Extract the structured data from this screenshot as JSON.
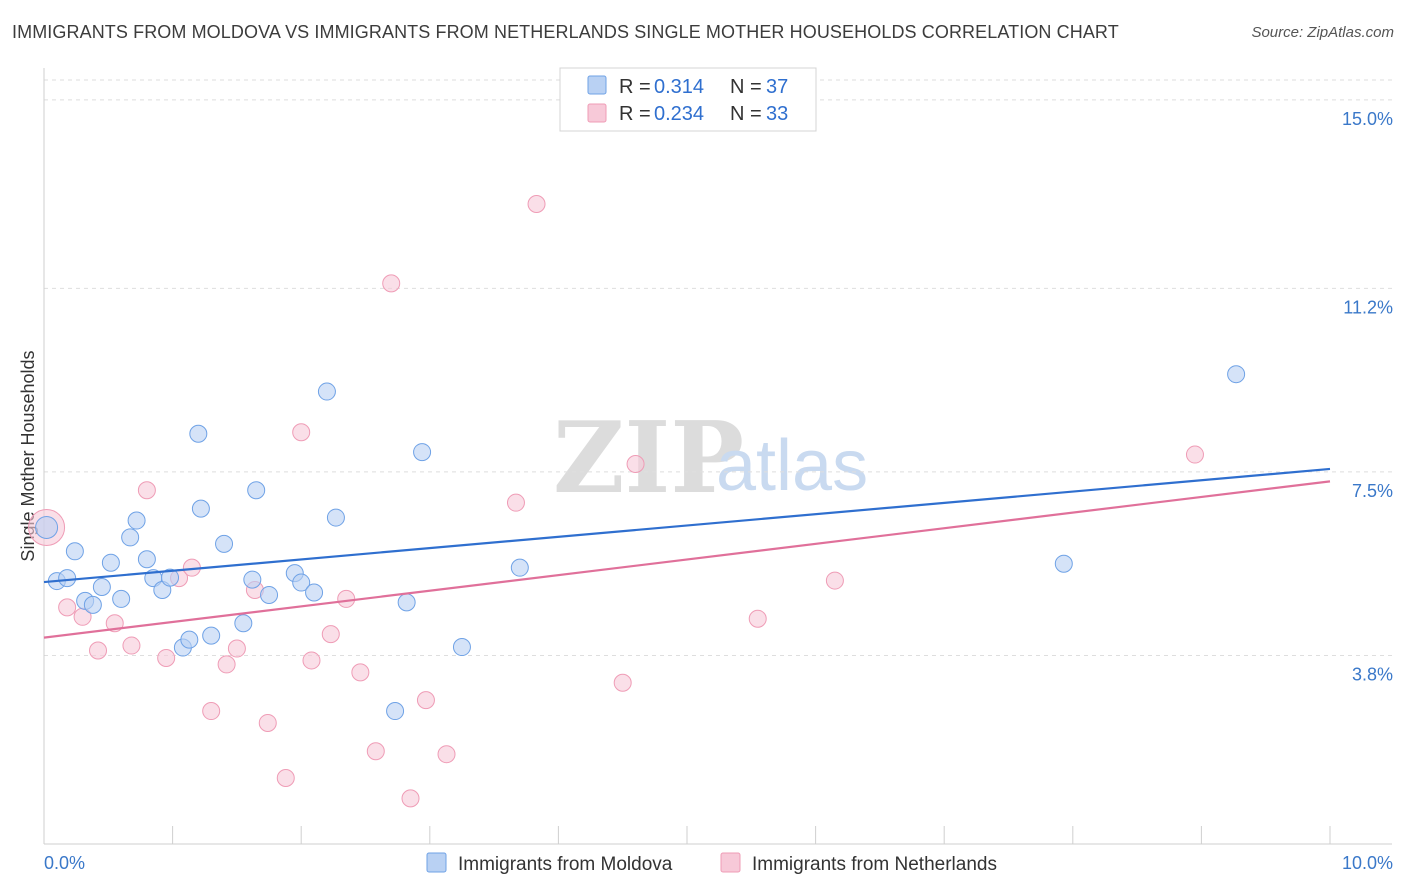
{
  "title": "IMMIGRANTS FROM MOLDOVA VS IMMIGRANTS FROM NETHERLANDS SINGLE MOTHER HOUSEHOLDS CORRELATION CHART",
  "source": "Source: ZipAtlas.com",
  "watermark": {
    "zip": "ZIP",
    "atlas": "atlas"
  },
  "legend": {
    "r_label": "R =",
    "n_label": "N =",
    "rows": [
      {
        "r": "0.314",
        "n": "37"
      },
      {
        "r": "0.234",
        "n": "33"
      }
    ]
  },
  "chart_data": {
    "type": "scatter",
    "title": "IMMIGRANTS FROM MOLDOVA VS IMMIGRANTS FROM NETHERLANDS SINGLE MOTHER HOUSEHOLDS CORRELATION CHART",
    "xlabel": "",
    "ylabel": "Single Mother Households",
    "xlim": [
      0,
      10
    ],
    "ylim": [
      0,
      15.4
    ],
    "x_tick_labels": [
      "0.0%",
      "10.0%"
    ],
    "y_ticks": [
      3.8,
      7.5,
      11.2,
      15.0
    ],
    "y_tick_labels": [
      "3.8%",
      "7.5%",
      "11.2%",
      "15.0%"
    ],
    "grid": true,
    "legend_position": "top-center",
    "series": [
      {
        "name": "Immigrants from Moldova",
        "color": "#6fa2e6",
        "fill": "#b9d1f3",
        "line_color": "#2f6fcf",
        "r": 0.314,
        "n": 37,
        "trend": {
          "x0": 0.0,
          "y0": 5.28,
          "x1": 10.0,
          "y1": 7.56
        },
        "points": [
          [
            0.02,
            6.38
          ],
          [
            0.1,
            5.3
          ],
          [
            0.18,
            5.36
          ],
          [
            0.24,
            5.9
          ],
          [
            0.32,
            4.9
          ],
          [
            0.38,
            4.82
          ],
          [
            0.45,
            5.18
          ],
          [
            0.52,
            5.67
          ],
          [
            0.6,
            4.94
          ],
          [
            0.67,
            6.18
          ],
          [
            0.72,
            6.52
          ],
          [
            0.8,
            5.74
          ],
          [
            0.85,
            5.36
          ],
          [
            0.92,
            5.12
          ],
          [
            0.98,
            5.37
          ],
          [
            1.08,
            3.96
          ],
          [
            1.13,
            4.12
          ],
          [
            1.2,
            8.27
          ],
          [
            1.22,
            6.76
          ],
          [
            1.3,
            4.2
          ],
          [
            1.4,
            6.05
          ],
          [
            1.55,
            4.45
          ],
          [
            1.62,
            5.33
          ],
          [
            1.65,
            7.13
          ],
          [
            1.75,
            5.02
          ],
          [
            1.95,
            5.46
          ],
          [
            2.0,
            5.27
          ],
          [
            2.1,
            5.07
          ],
          [
            2.2,
            9.12
          ],
          [
            2.27,
            6.58
          ],
          [
            2.73,
            2.68
          ],
          [
            2.82,
            4.87
          ],
          [
            2.94,
            7.9
          ],
          [
            3.25,
            3.97
          ],
          [
            3.7,
            5.57
          ],
          [
            7.93,
            5.65
          ],
          [
            9.27,
            9.47
          ]
        ]
      },
      {
        "name": "Immigrants from Netherlands",
        "color": "#ef9cb6",
        "fill": "#f7c9d8",
        "line_color": "#e0709a",
        "r": 0.234,
        "n": 33,
        "trend": {
          "x0": 0.0,
          "y0": 4.16,
          "x1": 10.0,
          "y1": 7.31
        },
        "points": [
          [
            0.02,
            6.38
          ],
          [
            0.18,
            4.77
          ],
          [
            0.3,
            4.58
          ],
          [
            0.42,
            3.9
          ],
          [
            0.55,
            4.45
          ],
          [
            0.68,
            4.0
          ],
          [
            0.8,
            7.13
          ],
          [
            0.95,
            3.75
          ],
          [
            1.05,
            5.36
          ],
          [
            1.15,
            5.57
          ],
          [
            1.3,
            2.68
          ],
          [
            1.42,
            3.62
          ],
          [
            1.5,
            3.94
          ],
          [
            1.64,
            5.12
          ],
          [
            1.74,
            2.44
          ],
          [
            1.88,
            1.33
          ],
          [
            2.0,
            8.3
          ],
          [
            2.08,
            3.7
          ],
          [
            2.23,
            4.23
          ],
          [
            2.35,
            4.94
          ],
          [
            2.46,
            3.46
          ],
          [
            2.58,
            1.87
          ],
          [
            2.7,
            11.3
          ],
          [
            2.85,
            0.92
          ],
          [
            2.97,
            2.9
          ],
          [
            3.13,
            1.81
          ],
          [
            3.67,
            6.88
          ],
          [
            3.83,
            12.9
          ],
          [
            4.5,
            3.25
          ],
          [
            4.6,
            7.66
          ],
          [
            5.55,
            4.54
          ],
          [
            6.15,
            5.31
          ],
          [
            8.95,
            7.85
          ]
        ]
      }
    ]
  }
}
